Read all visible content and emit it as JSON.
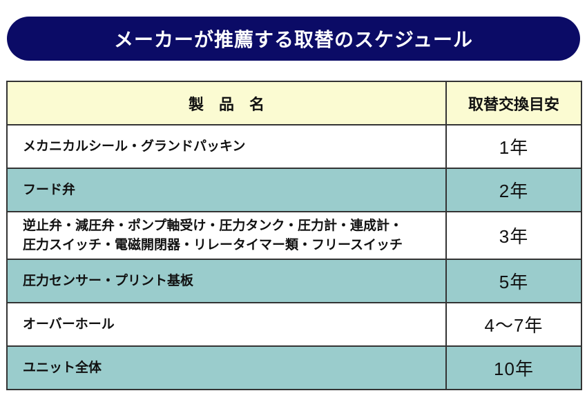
{
  "banner": {
    "title": "メーカーが推薦する取替のスケジュール"
  },
  "colors": {
    "banner-bg": "#0b0b66",
    "banner-text": "#ffffff",
    "header-bg": "#fbfbd2",
    "row-bg": "#ffffff",
    "row-alt-bg": "#9acccc",
    "border": "#333333",
    "text": "#111111"
  },
  "table": {
    "headers": {
      "product": "製　品　名",
      "interval": "取替交換目安"
    },
    "rows": [
      {
        "product": "メカニカルシール・グランドパッキン",
        "interval": "1年"
      },
      {
        "product": "フード弁",
        "interval": "2年"
      },
      {
        "product": "逆止弁・減圧弁・ポンプ軸受け・圧力タンク・圧力計・連成計・\n圧力スイッチ・電磁開閉器・リレータイマー類・フリースイッチ",
        "interval": "3年"
      },
      {
        "product": "圧力センサー・プリント基板",
        "interval": "5年"
      },
      {
        "product": "オーバーホール",
        "interval": "4〜7年"
      },
      {
        "product": "ユニット全体",
        "interval": "10年"
      }
    ]
  }
}
